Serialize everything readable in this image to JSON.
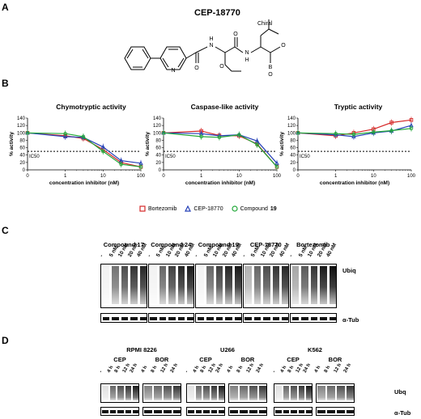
{
  "panels": {
    "A": {
      "label": "A",
      "title": "CEP-18770",
      "chiral": "Chiral",
      "atom_labels": {
        "n_pyridine": "N",
        "nh1": "N",
        "h1": "H",
        "nh2": "N",
        "h2": "H",
        "o_amide1": "O",
        "o_amide2": "O",
        "o_ether": "O",
        "b": "B",
        "oh1": "O",
        "oh2": "O"
      }
    },
    "B": {
      "label": "B"
    },
    "C": {
      "label": "C",
      "groups": [
        {
          "name": "Compound 17",
          "lanes": [
            "-",
            "5 nM",
            "10 nM",
            "20 nM",
            "40 nM"
          ]
        },
        {
          "name": "Compound 24",
          "lanes": [
            "-",
            "5 nM",
            "10 nM",
            "20 nM",
            "40 nM"
          ]
        },
        {
          "name": "Compound 19",
          "lanes": [
            "-",
            "5 nM",
            "10 nM",
            "20 nM",
            "40 nM"
          ]
        },
        {
          "name": "CEP-18770",
          "lanes": [
            "-",
            "5 nM",
            "10 nM",
            "20 nM",
            "40 nM"
          ]
        },
        {
          "name": "Bortezomib",
          "lanes": [
            "-",
            "5 nM",
            "10 nM",
            "20 nM",
            "40 nM"
          ]
        }
      ],
      "ubiq_label": "Ubiq",
      "tub_label": "α-Tub"
    },
    "D": {
      "label": "D",
      "cell_lines": [
        {
          "name": "RPMI 8226",
          "treatments": [
            {
              "name": "CEP",
              "lanes": [
                "-",
                "4 h",
                "8 h",
                "12 h",
                "24 h"
              ]
            },
            {
              "name": "BOR",
              "lanes": [
                "4 h",
                "8 h",
                "12 h",
                "24 h"
              ]
            }
          ]
        },
        {
          "name": "U266",
          "treatments": [
            {
              "name": "CEP",
              "lanes": [
                "-",
                "4 h",
                "8 h",
                "12 h",
                "24 h"
              ]
            },
            {
              "name": "BOR",
              "lanes": [
                "4 h",
                "8 h",
                "12 h",
                "24 h"
              ]
            }
          ]
        },
        {
          "name": "K562",
          "treatments": [
            {
              "name": "CEP",
              "lanes": [
                "-",
                "4 h",
                "8 h",
                "12 h",
                "24 h"
              ]
            },
            {
              "name": "BOR",
              "lanes": [
                "4 h",
                "8 h",
                "12 h",
                "24 h"
              ]
            }
          ]
        }
      ],
      "ubq_label": "Ubq",
      "tub_label": "α-Tub"
    }
  },
  "legend": {
    "items": [
      {
        "name": "Bortezomib",
        "color": "#d62828",
        "marker": "square"
      },
      {
        "name": "CEP-18770",
        "color": "#2540b8",
        "marker": "triangle"
      },
      {
        "name": "Compound",
        "number": "19",
        "color": "#21a838",
        "marker": "circle"
      }
    ]
  },
  "chart_data": [
    {
      "type": "line",
      "title": "Chymotryptic activity",
      "xlabel": "concentration inhibitor (nM)",
      "ylabel": "% activity",
      "xscale": "log",
      "xlim": [
        0,
        100
      ],
      "ylim": [
        0,
        140
      ],
      "xticks": [
        "0",
        "1",
        "10",
        "100"
      ],
      "yticks": [
        0,
        20,
        40,
        60,
        80,
        100,
        120,
        140
      ],
      "reference_line": {
        "y": 50,
        "label": "IC50"
      },
      "series": [
        {
          "name": "Bortezomib",
          "x": [
            0,
            1,
            3,
            10,
            30,
            100
          ],
          "y": [
            100,
            92,
            85,
            55,
            20,
            8
          ]
        },
        {
          "name": "CEP-18770",
          "x": [
            0,
            1,
            3,
            10,
            30,
            100
          ],
          "y": [
            100,
            90,
            88,
            62,
            25,
            18
          ]
        },
        {
          "name": "Compound 19",
          "x": [
            0,
            1,
            3,
            10,
            30,
            100
          ],
          "y": [
            100,
            98,
            90,
            50,
            15,
            8
          ]
        }
      ]
    },
    {
      "type": "line",
      "title": "Caspase-like activity",
      "xlabel": "concentration inhibitor (nM)",
      "ylabel": "% activity",
      "xscale": "log",
      "xlim": [
        0,
        100
      ],
      "ylim": [
        0,
        140
      ],
      "xticks": [
        "0",
        "1",
        "10",
        "100"
      ],
      "yticks": [
        0,
        20,
        40,
        60,
        80,
        100,
        120,
        140
      ],
      "reference_line": {
        "y": 50,
        "label": "IC50"
      },
      "series": [
        {
          "name": "Bortezomib",
          "x": [
            0,
            1,
            3,
            10,
            30,
            100
          ],
          "y": [
            100,
            105,
            93,
            92,
            70,
            8
          ]
        },
        {
          "name": "CEP-18770",
          "x": [
            0,
            1,
            3,
            10,
            30,
            100
          ],
          "y": [
            100,
            98,
            92,
            95,
            78,
            18
          ]
        },
        {
          "name": "Compound 19",
          "x": [
            0,
            1,
            3,
            10,
            30,
            100
          ],
          "y": [
            100,
            90,
            88,
            95,
            68,
            8
          ]
        }
      ]
    },
    {
      "type": "line",
      "title": "Tryptic activity",
      "xlabel": "concentration inhibitor (nM)",
      "ylabel": "% activity",
      "xscale": "log",
      "xlim": [
        0,
        100
      ],
      "ylim": [
        0,
        140
      ],
      "xticks": [
        "0",
        "1",
        "10",
        "100"
      ],
      "yticks": [
        0,
        20,
        40,
        60,
        80,
        100,
        120,
        140
      ],
      "reference_line": {
        "y": 50,
        "label": "IC50"
      },
      "series": [
        {
          "name": "Bortezomib",
          "x": [
            0,
            1,
            3,
            10,
            30,
            100
          ],
          "y": [
            100,
            92,
            100,
            110,
            128,
            135
          ]
        },
        {
          "name": "CEP-18770",
          "x": [
            0,
            1,
            3,
            10,
            30,
            100
          ],
          "y": [
            100,
            95,
            90,
            100,
            105,
            120
          ]
        },
        {
          "name": "Compound 19",
          "x": [
            0,
            1,
            3,
            10,
            30,
            100
          ],
          "y": [
            100,
            98,
            96,
            102,
            106,
            112
          ]
        }
      ]
    }
  ]
}
